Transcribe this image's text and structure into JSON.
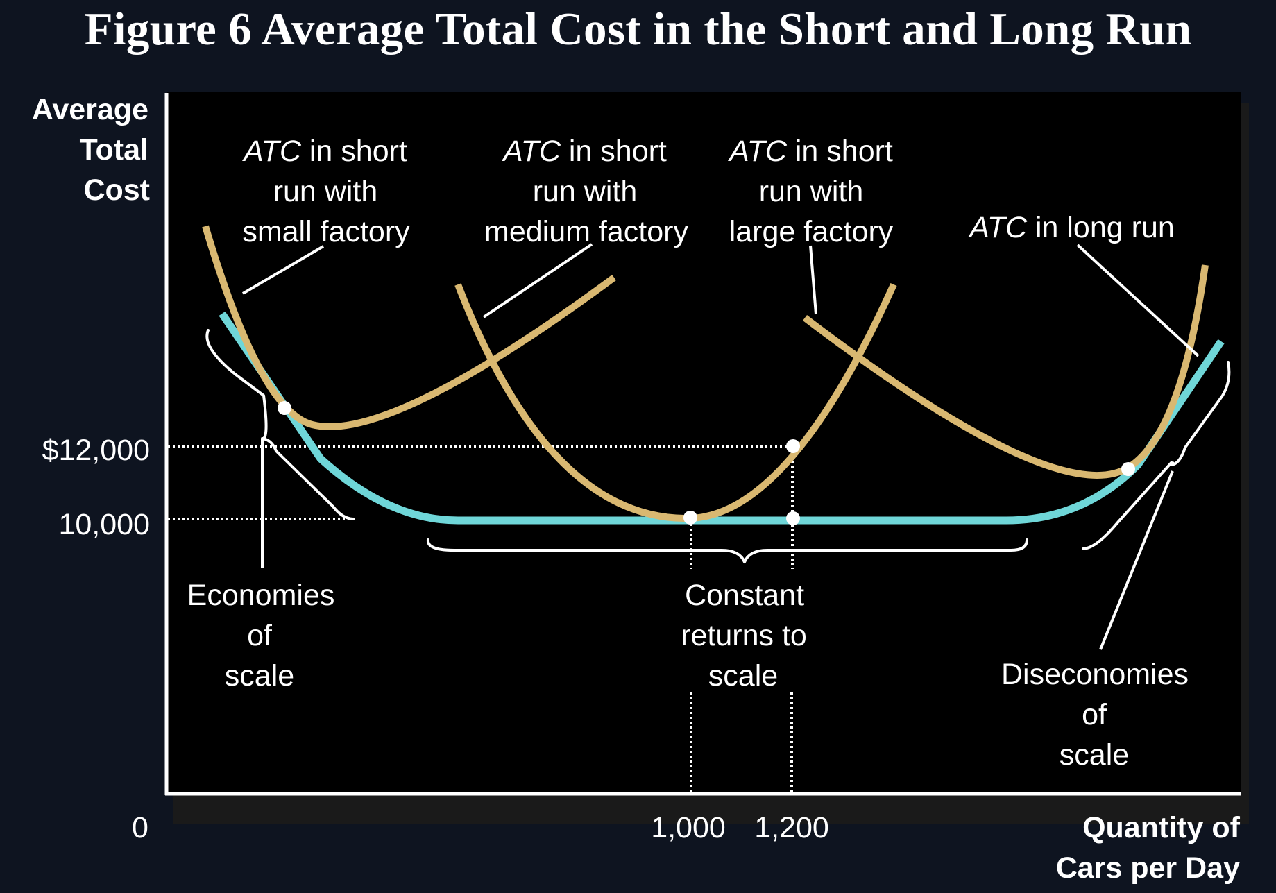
{
  "chart_data": {
    "type": "line",
    "title": "Figure 6 Average Total Cost in the Short and Long Run",
    "ylabel": [
      "Average",
      "Total",
      "Cost"
    ],
    "xlabel": [
      "Quantity of",
      "Cars per Day"
    ],
    "origin_label": "0",
    "x_ticks": [
      {
        "value": 1000,
        "label": "1,000"
      },
      {
        "value": 1200,
        "label": "1,200"
      }
    ],
    "y_ticks": [
      {
        "value": 12000,
        "label": "$12,000"
      },
      {
        "value": 10000,
        "label": "10,000"
      }
    ],
    "series": [
      {
        "name": "ATC in long run",
        "color": "#6fd6d8"
      },
      {
        "name": "ATC in short run with small factory",
        "color": "#d9b871"
      },
      {
        "name": "ATC in short run with medium factory",
        "color": "#d9b871"
      },
      {
        "name": "ATC in short run with large factory",
        "color": "#d9b871"
      }
    ],
    "annotations": {
      "small_factory": {
        "italic": "ATC",
        "lines": [
          " in short",
          "run with",
          "small factory"
        ]
      },
      "medium_factory": {
        "italic": "ATC",
        "lines": [
          " in short",
          "run with",
          "medium factory"
        ]
      },
      "large_factory": {
        "italic": "ATC",
        "lines": [
          " in short",
          "run with",
          "large factory"
        ]
      },
      "long_run": {
        "italic": "ATC",
        "rest": " in long run"
      },
      "economies": [
        "Economies",
        "of",
        "scale"
      ],
      "constant": [
        "Constant",
        "returns to",
        "scale"
      ],
      "diseconomies": [
        "Diseconomies",
        "of",
        "scale"
      ]
    },
    "grid": false
  }
}
